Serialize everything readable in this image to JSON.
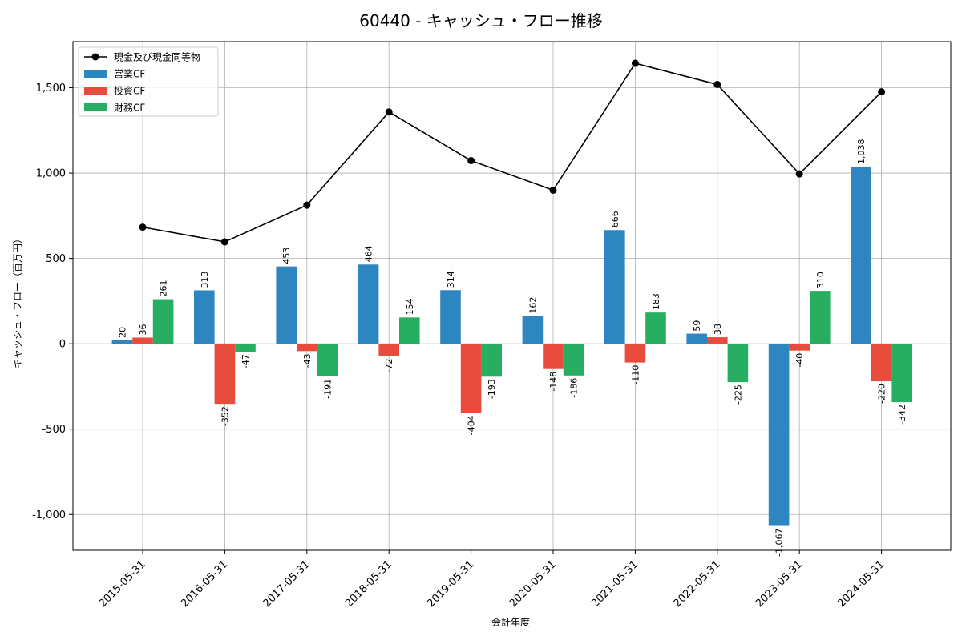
{
  "chart_data": {
    "type": "bar",
    "title": "60440 - キャッシュ・フロー推移",
    "xlabel": "会計年度",
    "ylabel": "キャッシュ・フロー（百万円）",
    "categories": [
      "2015-05-31",
      "2016-05-31",
      "2017-05-31",
      "2018-05-31",
      "2019-05-31",
      "2020-05-31",
      "2021-05-31",
      "2022-05-31",
      "2023-05-31",
      "2024-05-31"
    ],
    "series": [
      {
        "name": "営業CF",
        "type": "bar",
        "color": "#2e86c1",
        "values": [
          20,
          313,
          453,
          464,
          314,
          162,
          666,
          59,
          -1067,
          1038
        ],
        "labels": [
          "20",
          "313",
          "453",
          "464",
          "314",
          "162",
          "666",
          "59",
          "-1,067",
          "1,038"
        ]
      },
      {
        "name": "投資CF",
        "type": "bar",
        "color": "#e74c3c",
        "values": [
          36,
          -352,
          -43,
          -72,
          -404,
          -148,
          -110,
          38,
          -40,
          -220
        ],
        "labels": [
          "36",
          "-352",
          "-43",
          "-72",
          "-404",
          "-148",
          "-110",
          "38",
          "-40",
          "-220"
        ]
      },
      {
        "name": "財務CF",
        "type": "bar",
        "color": "#27ae60",
        "values": [
          261,
          -47,
          -191,
          154,
          -193,
          -186,
          183,
          -225,
          310,
          -342
        ],
        "labels": [
          "261",
          "-47",
          "-191",
          "154",
          "-193",
          "-186",
          "183",
          "-225",
          "310",
          "-342"
        ]
      },
      {
        "name": "現金及び現金同等物",
        "type": "line",
        "color": "#000000",
        "values": [
          683,
          597,
          812,
          1358,
          1073,
          900,
          1643,
          1519,
          995,
          1476
        ]
      }
    ],
    "yticks": [
      -1000,
      -500,
      0,
      500,
      1000,
      1500
    ],
    "ytick_labels": [
      "-1,000",
      "-500",
      "0",
      "500",
      "1,000",
      "1,500"
    ],
    "ylim": [
      -1210,
      1770
    ],
    "grid": true,
    "legend_position": "top-left"
  }
}
